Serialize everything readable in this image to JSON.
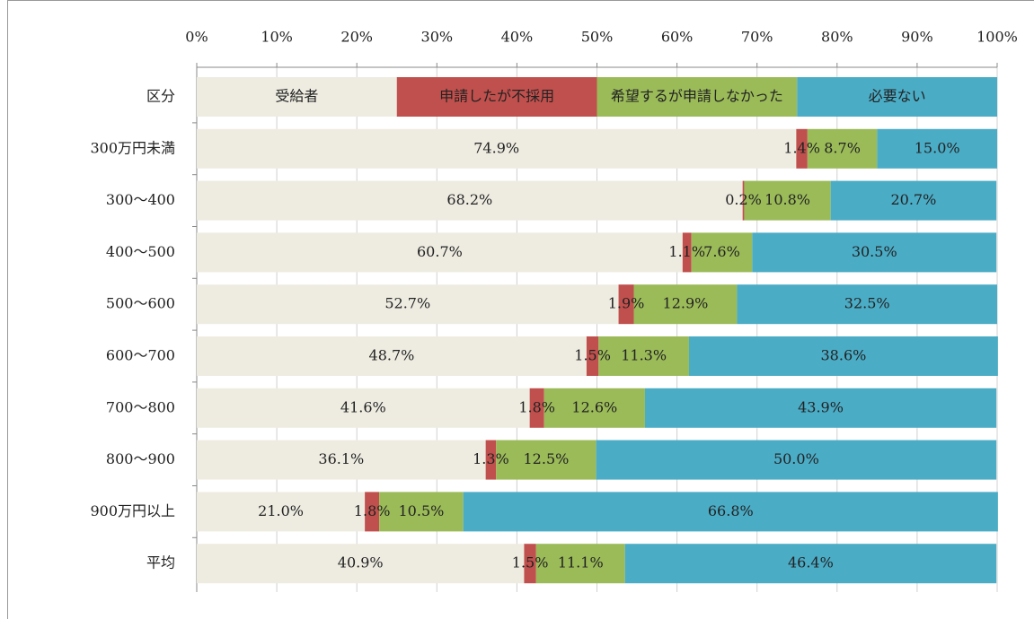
{
  "chart_data": {
    "type": "stacked-bar-horizontal",
    "header_label": "区分",
    "categories": [
      "300万円未満",
      "300～400",
      "400～500",
      "500～600",
      "600～700",
      "700～800",
      "800～900",
      "900万円以上",
      "平均"
    ],
    "series": [
      {
        "name": "受給者",
        "color": "#eeece1",
        "values": [
          74.9,
          68.2,
          60.7,
          52.7,
          48.7,
          41.6,
          36.1,
          21.0,
          40.9
        ],
        "value_labels": [
          "74.9%",
          "68.2%",
          "60.7%",
          "52.7%",
          "48.7%",
          "41.6%",
          "36.1%",
          "21.0%",
          "40.9%"
        ]
      },
      {
        "name": "申請したが不採用",
        "color": "#c0504d",
        "values": [
          1.4,
          0.2,
          1.1,
          1.9,
          1.5,
          1.8,
          1.3,
          1.8,
          1.5
        ],
        "value_labels": [
          "1.4%",
          "0.2%",
          "1.1%",
          "1.9%",
          "1.5%",
          "1.8%",
          "1.3%",
          "1.8%",
          "1.5%"
        ]
      },
      {
        "name": "希望するが申請しなかった",
        "color": "#9bbb59",
        "values": [
          8.7,
          10.8,
          7.6,
          12.9,
          11.3,
          12.6,
          12.5,
          10.5,
          11.1
        ],
        "value_labels": [
          "8.7%",
          "10.8%",
          "7.6%",
          "12.9%",
          "11.3%",
          "12.6%",
          "12.5%",
          "10.5%",
          "11.1%"
        ]
      },
      {
        "name": "必要ない",
        "color": "#4bacc6",
        "values": [
          15.0,
          20.7,
          30.5,
          32.5,
          38.6,
          43.9,
          50.0,
          66.8,
          46.4
        ],
        "value_labels": [
          "15.0%",
          "20.7%",
          "30.5%",
          "32.5%",
          "38.6%",
          "43.9%",
          "50.0%",
          "66.8%",
          "46.4%"
        ]
      }
    ],
    "xlim": [
      0,
      100
    ],
    "xticks": [
      {
        "value": 0,
        "label": "0%"
      },
      {
        "value": 10,
        "label": "10%"
      },
      {
        "value": 20,
        "label": "20%"
      },
      {
        "value": 30,
        "label": "30%"
      },
      {
        "value": 40,
        "label": "40%"
      },
      {
        "value": 50,
        "label": "50%"
      },
      {
        "value": 60,
        "label": "60%"
      },
      {
        "value": 70,
        "label": "70%"
      },
      {
        "value": 80,
        "label": "80%"
      },
      {
        "value": 90,
        "label": "90%"
      },
      {
        "value": 100,
        "label": "100%"
      }
    ],
    "grid": true
  }
}
